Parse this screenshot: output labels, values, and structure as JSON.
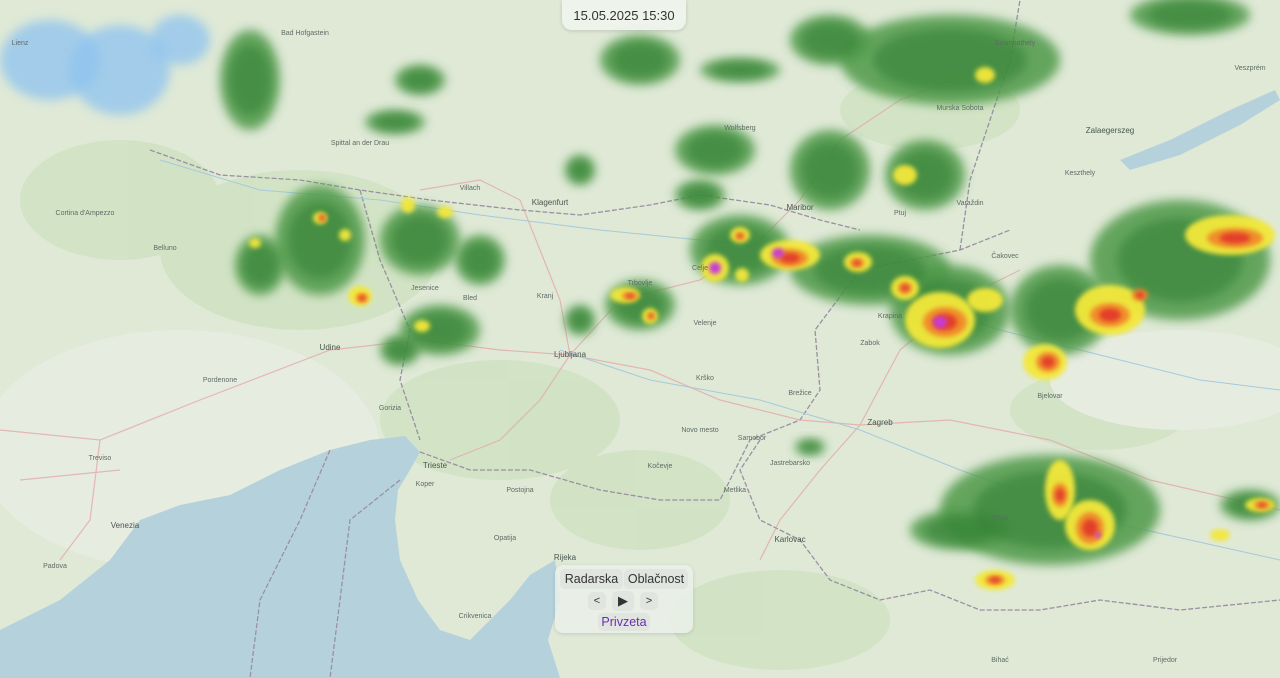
{
  "timestamp": "15.05.2025 15:30",
  "controls": {
    "layer_radar": "Radarska",
    "layer_clouds": "Oblačnost",
    "prev": "<",
    "play": "▶",
    "next": ">",
    "default": "Privzeta"
  },
  "colors": {
    "land": "#dfe9d6",
    "sea": "#b5d2dc",
    "radar_light": "#4f9a4a",
    "radar_mid": "#2e7d32",
    "radar_yellow": "#f3e83a",
    "radar_orange": "#f08a2c",
    "radar_red": "#e23a2a",
    "radar_magenta": "#c83ad6",
    "snow_blue": "#8ec3f0"
  },
  "map": {
    "cities": [
      "Ljubljana",
      "Zagreb",
      "Maribor",
      "Klagenfurt",
      "Villach",
      "Udine",
      "Trieste",
      "Koper",
      "Pordenone",
      "Treviso",
      "Venezia",
      "Padova",
      "Rijeka",
      "Karlovac",
      "Celje",
      "Novo mesto",
      "Kranj",
      "Bjelovar",
      "Zalaegerszeg",
      "Veszprém",
      "Samobor",
      "Krško",
      "Brežice",
      "Kočevje",
      "Postojna",
      "Gorizia",
      "Bled",
      "Jesenice",
      "Trbovlje",
      "Varaždin",
      "Čakovec",
      "Krapina",
      "Zabok",
      "Sisak",
      "Jastrebarsko",
      "Metlika",
      "Velenje",
      "Ptuj",
      "Murska Sobota",
      "Lienz",
      "Cortina d'Ampezzo",
      "Belluno",
      "Prijedor",
      "Bihać",
      "Crikvenica",
      "Opatija",
      "Wolfsberg",
      "Spittal an der Drau",
      "Bad Hofgastein",
      "Szombathely",
      "Keszthely"
    ]
  }
}
